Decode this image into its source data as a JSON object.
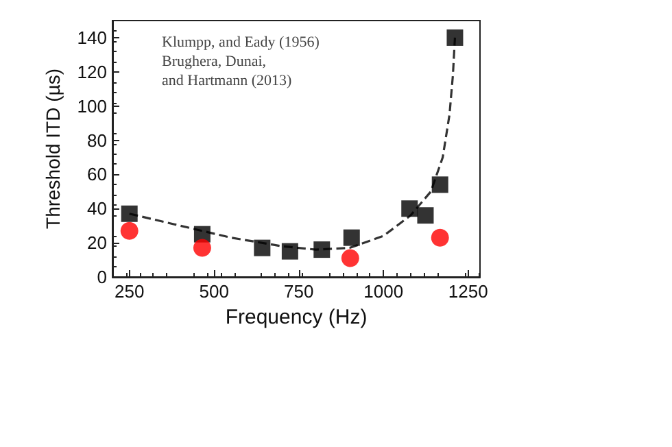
{
  "chart_data": {
    "type": "scatter",
    "xlabel": "Frequency (Hz)",
    "ylabel": "Threshold ITD (µs)",
    "annotations": [
      "Klumpp, and Eady (1956)\nBrughera, Dunai,\nand Hartmann (2013)"
    ],
    "xlim": [
      200,
      1285
    ],
    "xticks": [
      250,
      500,
      750,
      1000,
      1250
    ],
    "ylim": [
      0,
      150
    ],
    "yticks": [
      0,
      20,
      40,
      60,
      80,
      100,
      120,
      140
    ],
    "grid": false,
    "series": [
      {
        "marker": "square",
        "color": "#000000",
        "x": [
          250,
          465,
          642,
          724,
          818,
          906,
          1077,
          1124,
          1167,
          1211
        ],
        "values": [
          37,
          25,
          17,
          15,
          16,
          23,
          40,
          36,
          54,
          140
        ]
      },
      {
        "marker": "circle",
        "color": "#ff0000",
        "x": [
          250,
          465,
          902,
          1167
        ],
        "values": [
          27,
          17,
          11,
          23
        ]
      },
      {
        "type": "line",
        "marker": "none",
        "line_style": "dashed",
        "color": "#333333",
        "x": [
          250,
          400,
          550,
          700,
          800,
          900,
          1000,
          1080,
          1140,
          1175,
          1195,
          1205,
          1211
        ],
        "values": [
          37,
          30,
          23,
          18,
          16,
          17,
          24,
          36,
          50,
          70,
          95,
          118,
          140
        ]
      }
    ]
  }
}
